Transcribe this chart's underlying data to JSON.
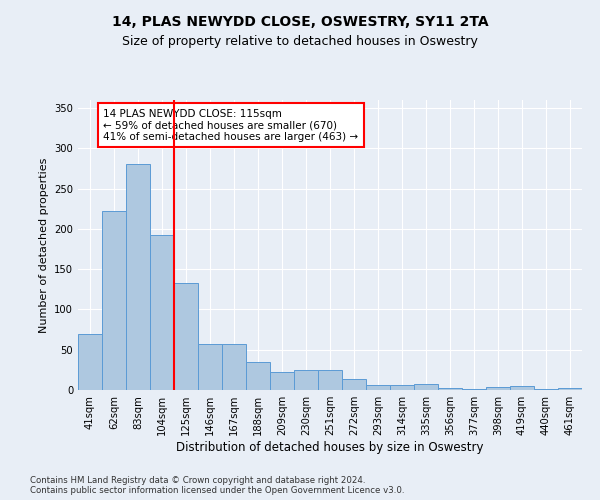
{
  "title": "14, PLAS NEWYDD CLOSE, OSWESTRY, SY11 2TA",
  "subtitle": "Size of property relative to detached houses in Oswestry",
  "xlabel": "Distribution of detached houses by size in Oswestry",
  "ylabel": "Number of detached properties",
  "footer_line1": "Contains HM Land Registry data © Crown copyright and database right 2024.",
  "footer_line2": "Contains public sector information licensed under the Open Government Licence v3.0.",
  "categories": [
    "41sqm",
    "62sqm",
    "83sqm",
    "104sqm",
    "125sqm",
    "146sqm",
    "167sqm",
    "188sqm",
    "209sqm",
    "230sqm",
    "251sqm",
    "272sqm",
    "293sqm",
    "314sqm",
    "335sqm",
    "356sqm",
    "377sqm",
    "398sqm",
    "419sqm",
    "440sqm",
    "461sqm"
  ],
  "values": [
    70,
    222,
    281,
    192,
    133,
    57,
    57,
    35,
    22,
    25,
    25,
    14,
    6,
    6,
    7,
    3,
    1,
    4,
    5,
    1,
    2
  ],
  "bar_color": "#aec8e0",
  "bar_edge_color": "#5b9bd5",
  "red_line_index": 3.5,
  "red_line_label": "14 PLAS NEWYDD CLOSE: 115sqm",
  "annotation_line2": "← 59% of detached houses are smaller (670)",
  "annotation_line3": "41% of semi-detached houses are larger (463) →",
  "ylim": [
    0,
    360
  ],
  "yticks": [
    0,
    50,
    100,
    150,
    200,
    250,
    300,
    350
  ],
  "bg_color": "#e8eef6",
  "plot_bg_color": "#e8eef6",
  "grid_color": "#ffffff",
  "title_fontsize": 10,
  "subtitle_fontsize": 9
}
